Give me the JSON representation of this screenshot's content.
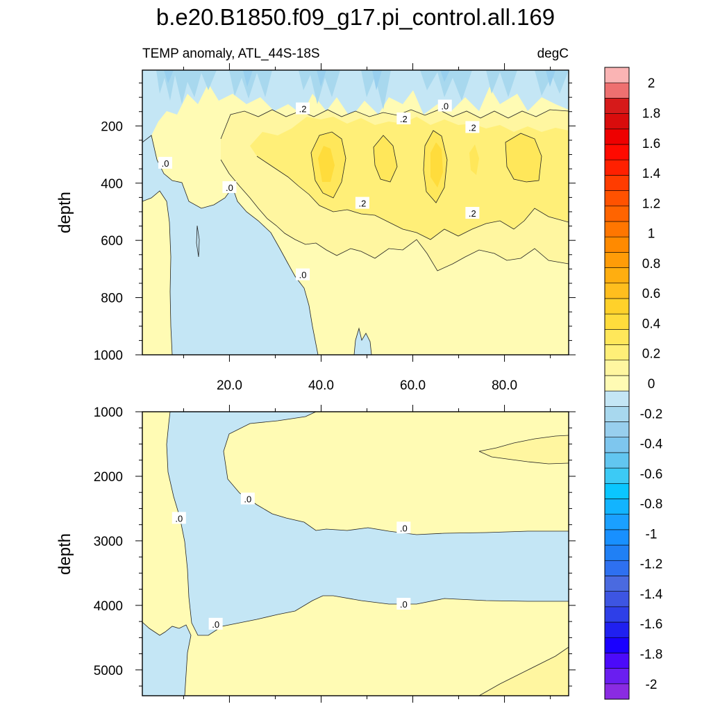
{
  "header": {
    "title": "b.e20.B1850.f09_g17.pi_control.all.169",
    "subtitle_left": "TEMP anomaly, ATL_44S-18S",
    "subtitle_right": "degC"
  },
  "chart_data": [
    {
      "type": "heatmap",
      "panel": "upper",
      "ylabel": "depth",
      "xlabel": "",
      "xlim": [
        1,
        94
      ],
      "ylim": [
        1000,
        5
      ],
      "x_ticks": [
        "20.0",
        "40.0",
        "60.0",
        "80.0"
      ],
      "x_tick_values": [
        20,
        40,
        60,
        80
      ],
      "y_ticks": [
        "200",
        "400",
        "600",
        "800",
        "1000"
      ],
      "y_tick_values": [
        200,
        400,
        600,
        800,
        1000
      ],
      "contour_labels": [
        {
          "text": ".2",
          "x": 36,
          "y": 140
        },
        {
          "text": ".0",
          "x": 67,
          "y": 130
        },
        {
          "text": ".2",
          "x": 58,
          "y": 175
        },
        {
          "text": ".2",
          "x": 73,
          "y": 205
        },
        {
          "text": ".0",
          "x": 6,
          "y": 330
        },
        {
          "text": ".0",
          "x": 20,
          "y": 415
        },
        {
          "text": ".2",
          "x": 49,
          "y": 470
        },
        {
          "text": ".2",
          "x": 73,
          "y": 505
        },
        {
          "text": ".0",
          "x": 36,
          "y": 720
        }
      ]
    },
    {
      "type": "heatmap",
      "panel": "lower",
      "ylabel": "depth",
      "xlabel": "",
      "xlim": [
        1,
        94
      ],
      "ylim": [
        5400,
        1000
      ],
      "y_ticks": [
        "1000",
        "2000",
        "3000",
        "4000",
        "5000"
      ],
      "y_tick_values": [
        1000,
        2000,
        3000,
        4000,
        5000
      ],
      "contour_labels": [
        {
          "text": ".0",
          "x": 24,
          "y": 2350
        },
        {
          "text": ".0",
          "x": 9,
          "y": 2650
        },
        {
          "text": ".0",
          "x": 58,
          "y": 2800
        },
        {
          "text": ".0",
          "x": 58,
          "y": 3980
        },
        {
          "text": ".0",
          "x": 17,
          "y": 4290
        }
      ]
    }
  ],
  "colorbar": {
    "levels": [
      -2,
      -1.9,
      -1.8,
      -1.7,
      -1.6,
      -1.5,
      -1.4,
      -1.3,
      -1.2,
      -1.1,
      -1,
      -0.9,
      -0.8,
      -0.7,
      -0.6,
      -0.5,
      -0.4,
      -0.3,
      -0.2,
      -0.1,
      0,
      0.1,
      0.2,
      0.3,
      0.4,
      0.5,
      0.6,
      0.7,
      0.8,
      0.9,
      1,
      1.1,
      1.2,
      1.3,
      1.4,
      1.5,
      1.6,
      1.7,
      1.8,
      1.9,
      2
    ],
    "colors_bottom_to_top": [
      "#8a2be2",
      "#6a1ef0",
      "#4b0afa",
      "#1a00ff",
      "#2020f0",
      "#2e3fe8",
      "#3d55e2",
      "#4a6ae0",
      "#2e70f0",
      "#2080f5",
      "#1890ff",
      "#1aa0ff",
      "#12b4ff",
      "#0ac6ff",
      "#3ccaf5",
      "#62c6f0",
      "#7ec6ee",
      "#98cfee",
      "#a8d8ee",
      "#c4e6f5",
      "#fffbb4",
      "#fff6a0",
      "#ffef78",
      "#ffe75a",
      "#ffdc3c",
      "#ffd12a",
      "#ffbe1e",
      "#ffae10",
      "#ff9c08",
      "#ff8a00",
      "#ff7600",
      "#ff6400",
      "#ff5200",
      "#ff3c00",
      "#ff2000",
      "#ff0a00",
      "#ee0000",
      "#d90c0c",
      "#d61a1a",
      "#ee7070",
      "#fab4b4"
    ],
    "tick_labels": [
      {
        "text": "2",
        "value": 2.0
      },
      {
        "text": "1.8",
        "value": 1.8
      },
      {
        "text": "1.6",
        "value": 1.6
      },
      {
        "text": "1.4",
        "value": 1.4
      },
      {
        "text": "1.2",
        "value": 1.2
      },
      {
        "text": "1",
        "value": 1.0
      },
      {
        "text": "0.8",
        "value": 0.8
      },
      {
        "text": "0.6",
        "value": 0.6
      },
      {
        "text": "0.4",
        "value": 0.4
      },
      {
        "text": "0.2",
        "value": 0.2
      },
      {
        "text": "0",
        "value": 0.0
      },
      {
        "text": "-0.2",
        "value": -0.2
      },
      {
        "text": "-0.4",
        "value": -0.4
      },
      {
        "text": "-0.6",
        "value": -0.6
      },
      {
        "text": "-0.8",
        "value": -0.8
      },
      {
        "text": "-1",
        "value": -1.0
      },
      {
        "text": "-1.2",
        "value": -1.2
      },
      {
        "text": "-1.4",
        "value": -1.4
      },
      {
        "text": "-1.6",
        "value": -1.6
      },
      {
        "text": "-1.8",
        "value": -1.8
      },
      {
        "text": "-2",
        "value": -2.0
      }
    ]
  },
  "colors": {
    "c_neg01": "#c4e6f5",
    "c_neg02": "#a8d8ee",
    "c_neg03": "#98cfee",
    "c_neg04": "#7ec6ee",
    "c_pos01": "#fffbb4",
    "c_pos02": "#fff6a0",
    "c_pos03": "#ffef78",
    "c_pos04": "#ffe75a",
    "c_pos05": "#ffdc3c"
  }
}
